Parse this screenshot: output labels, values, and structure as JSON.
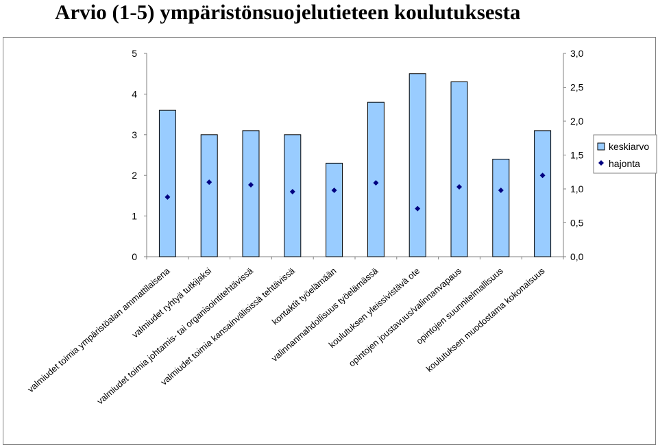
{
  "chart_data": {
    "type": "bar",
    "title": "Arvio (1-5) ympäristönsuojelutieteen koulutuksesta",
    "categories": [
      "valmiudet toimia ympäristöalan ammattilaisena",
      "valmiudet ryhtyä tutkijaksi",
      "valmiudet toimia johtamis- tai organisointitehtävissä",
      "valmiudet toimia kansainvälisissä tehtävissä",
      "kontaktit työelämään",
      "valinnanmahdollisuus työelämässä",
      "koulutuksen yleissivistävä ote",
      "opintojen joustavuus/valinnanvapaus",
      "opintojen suunnitelmallisuus",
      "koulutuksen muodostama kokonaisuus"
    ],
    "series": [
      {
        "name": "keskiarvo",
        "axis": "left",
        "values": [
          3.6,
          3.0,
          3.1,
          3.0,
          2.3,
          3.8,
          4.5,
          4.3,
          2.4,
          3.1
        ]
      },
      {
        "name": "hajonta",
        "axis": "right",
        "values": [
          0.88,
          1.1,
          1.06,
          0.96,
          0.98,
          1.09,
          0.71,
          1.03,
          0.98,
          1.2
        ]
      }
    ],
    "y_left": {
      "min": 0,
      "max": 5,
      "ticks": [
        "0",
        "1",
        "2",
        "3",
        "4",
        "5"
      ]
    },
    "y_right": {
      "min": 0,
      "max": 3,
      "ticks": [
        "0,0",
        "0,5",
        "1,0",
        "1,5",
        "2,0",
        "2,5",
        "3,0"
      ]
    },
    "legend": {
      "position": "right",
      "entries": [
        "keskiarvo",
        "hajonta"
      ]
    },
    "colors": {
      "bar_fill": "#99ccff",
      "bar_stroke": "#000000",
      "marker": "#000080"
    }
  }
}
